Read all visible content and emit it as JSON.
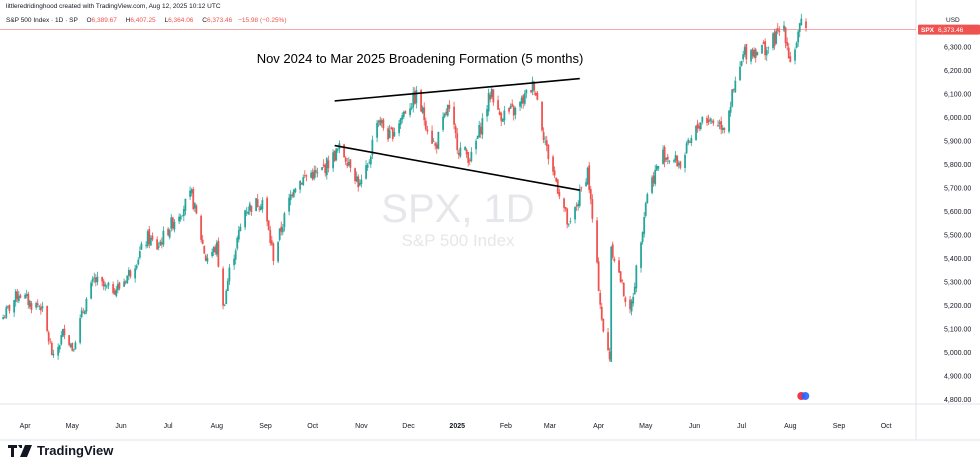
{
  "header": {
    "credit": "littleredridinghood created with TradingView.com, Aug 12, 2025 10:12 UTC",
    "symbol": "S&P 500 Index · 1D · SP",
    "o_label": "O",
    "o": "6,389.67",
    "h_label": "H",
    "h": "6,407.25",
    "l_label": "L",
    "l": "6,364.06",
    "c_label": "C",
    "c": "6,373.46",
    "change": "−15.98 (−0.25%)"
  },
  "watermark": {
    "symbol": "SPX, 1D",
    "name": "S&P 500 Index"
  },
  "footer": {
    "brand": "TradingView"
  },
  "colors": {
    "up": "#26a69a",
    "down": "#ef5350",
    "trend_line": "#000000",
    "price_line": "#ef5350",
    "watermark": "#e6e7ea"
  },
  "chart_data": {
    "type": "candlestick",
    "title": "Nov 2024 to Mar 2025  Broadening Formation (5 months)",
    "currency": "USD",
    "symbol_tag": "SPX",
    "last_price": 6373.46,
    "ylim": [
      4780,
      6440
    ],
    "y_ticks": [
      4800,
      4900,
      5000,
      5100,
      5200,
      5300,
      5400,
      5500,
      5600,
      5700,
      5800,
      5900,
      6000,
      6100,
      6200,
      6300
    ],
    "y_tick_labels": [
      "4,800.00",
      "4,900.00",
      "5,000.00",
      "5,100.00",
      "5,200.00",
      "5,300.00",
      "5,400.00",
      "5,500.00",
      "5,600.00",
      "5,700.00",
      "5,800.00",
      "5,900.00",
      "6,000.00",
      "6,100.00",
      "6,200.00",
      "6,300.00"
    ],
    "x_ticks": [
      {
        "label": "Apr",
        "date": "2024-04-01"
      },
      {
        "label": "May",
        "date": "2024-05-01"
      },
      {
        "label": "Jun",
        "date": "2024-06-01"
      },
      {
        "label": "Jul",
        "date": "2024-07-01"
      },
      {
        "label": "Aug",
        "date": "2024-08-01"
      },
      {
        "label": "Sep",
        "date": "2024-09-01"
      },
      {
        "label": "Oct",
        "date": "2024-10-01"
      },
      {
        "label": "Nov",
        "date": "2024-11-01"
      },
      {
        "label": "Dec",
        "date": "2024-12-01"
      },
      {
        "label": "2025",
        "date": "2025-01-01",
        "bold": true
      },
      {
        "label": "Feb",
        "date": "2025-02-01"
      },
      {
        "label": "Mar",
        "date": "2025-03-01"
      },
      {
        "label": "Apr",
        "date": "2025-04-01"
      },
      {
        "label": "May",
        "date": "2025-05-01"
      },
      {
        "label": "Jun",
        "date": "2025-06-01"
      },
      {
        "label": "Jul",
        "date": "2025-07-01"
      },
      {
        "label": "Aug",
        "date": "2025-08-01"
      },
      {
        "label": "Sep",
        "date": "2025-09-01"
      },
      {
        "label": "Oct",
        "date": "2025-10-01"
      }
    ],
    "x_range": [
      "2024-03-16",
      "2025-10-20"
    ],
    "close_path": [
      [
        "2024-03-18",
        5150
      ],
      [
        "2024-03-28",
        5254
      ],
      [
        "2024-04-05",
        5204
      ],
      [
        "2024-04-11",
        5199
      ],
      [
        "2024-04-19",
        4967
      ],
      [
        "2024-04-26",
        5100
      ],
      [
        "2024-05-01",
        5018
      ],
      [
        "2024-05-10",
        5222
      ],
      [
        "2024-05-15",
        5308
      ],
      [
        "2024-05-23",
        5267
      ],
      [
        "2024-05-31",
        5277
      ],
      [
        "2024-06-07",
        5346
      ],
      [
        "2024-06-18",
        5487
      ],
      [
        "2024-06-24",
        5448
      ],
      [
        "2024-07-05",
        5567
      ],
      [
        "2024-07-16",
        5667
      ],
      [
        "2024-07-25",
        5400
      ],
      [
        "2024-08-01",
        5446
      ],
      [
        "2024-08-05",
        5186
      ],
      [
        "2024-08-09",
        5344
      ],
      [
        "2024-08-19",
        5608
      ],
      [
        "2024-08-30",
        5648
      ],
      [
        "2024-09-06",
        5408
      ],
      [
        "2024-09-19",
        5713
      ],
      [
        "2024-09-30",
        5762
      ],
      [
        "2024-10-04",
        5751
      ],
      [
        "2024-10-18",
        5864
      ],
      [
        "2024-10-25",
        5808
      ],
      [
        "2024-10-31",
        5705
      ],
      [
        "2024-11-05",
        5782
      ],
      [
        "2024-11-11",
        6001
      ],
      [
        "2024-11-19",
        5917
      ],
      [
        "2024-11-29",
        6032
      ],
      [
        "2024-12-06",
        6090
      ],
      [
        "2024-12-18",
        5872
      ],
      [
        "2024-12-26",
        6037
      ],
      [
        "2025-01-02",
        5868
      ],
      [
        "2025-01-10",
        5827
      ],
      [
        "2025-01-23",
        6118
      ],
      [
        "2025-01-27",
        6012
      ],
      [
        "2025-02-07",
        6026
      ],
      [
        "2025-02-19",
        6144
      ],
      [
        "2025-02-27",
        5861
      ],
      [
        "2025-03-10",
        5614
      ],
      [
        "2025-03-13",
        5521
      ],
      [
        "2025-03-25",
        5776
      ],
      [
        "2025-04-04",
        5074
      ],
      [
        "2025-04-08",
        4982
      ],
      [
        "2025-04-09",
        5456
      ],
      [
        "2025-04-21",
        5158
      ],
      [
        "2025-05-02",
        5686
      ],
      [
        "2025-05-12",
        5844
      ],
      [
        "2025-05-23",
        5802
      ],
      [
        "2025-06-06",
        6000
      ],
      [
        "2025-06-20",
        5967
      ],
      [
        "2025-07-03",
        6279
      ],
      [
        "2025-07-18",
        6297
      ],
      [
        "2025-07-28",
        6389
      ],
      [
        "2025-08-01",
        6238
      ],
      [
        "2025-08-08",
        6389
      ],
      [
        "2025-08-11",
        6373
      ]
    ],
    "annotations": [
      {
        "type": "trend_line",
        "from": [
          "2024-10-15",
          6070
        ],
        "to": [
          "2025-03-20",
          6165
        ]
      },
      {
        "type": "trend_line",
        "from": [
          "2024-10-15",
          5880
        ],
        "to": [
          "2025-03-20",
          5690
        ]
      }
    ]
  }
}
